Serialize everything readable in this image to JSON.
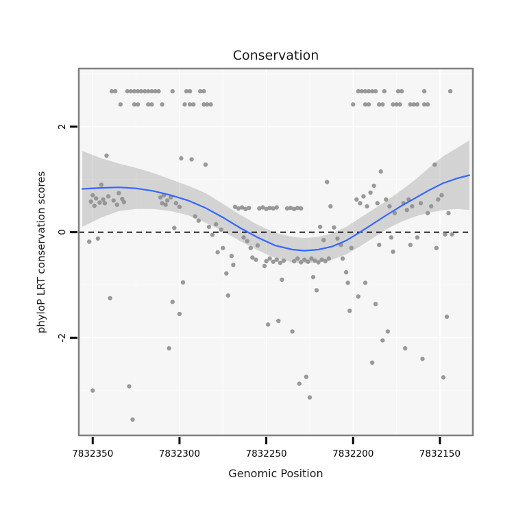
{
  "chart_data": {
    "type": "scatter",
    "title": "Conservation",
    "xlabel": "Genomic Position",
    "ylabel": "phyloP LRT conservation scores",
    "x_reversed": true,
    "x_domain": [
      7832358,
      7832131
    ],
    "y_domain": [
      -3.85,
      3.1
    ],
    "x_ticks": [
      7832350,
      7832300,
      7832250,
      7832200,
      7832150
    ],
    "x_minor_ticks": [
      7832325,
      7832275,
      7832225,
      7832175
    ],
    "y_ticks": [
      -2,
      0,
      2
    ],
    "y_minor_ticks": [
      -3,
      -1,
      1,
      3
    ],
    "reference_line_y": 0,
    "legend": "none",
    "grid": "on",
    "colors": {
      "point": "#8f8f8f",
      "smooth_line": "#3366FF",
      "ribbon": "#9c9c9c",
      "panel": "#f6f6f6",
      "grid_major": "#ffffff",
      "grid_minor": "#fbfbfb",
      "border": "#7f7f7f",
      "ref_line": "#000000",
      "tick": "#000000"
    },
    "points": [
      [
        7832339,
        2.67
      ],
      [
        7832337,
        2.67
      ],
      [
        7832330,
        2.67
      ],
      [
        7832328,
        2.67
      ],
      [
        7832326,
        2.67
      ],
      [
        7832324,
        2.67
      ],
      [
        7832322,
        2.67
      ],
      [
        7832320,
        2.67
      ],
      [
        7832318,
        2.67
      ],
      [
        7832316,
        2.67
      ],
      [
        7832314,
        2.67
      ],
      [
        7832312,
        2.67
      ],
      [
        7832304,
        2.67
      ],
      [
        7832296,
        2.67
      ],
      [
        7832294,
        2.67
      ],
      [
        7832288,
        2.67
      ],
      [
        7832286,
        2.67
      ],
      [
        7832197,
        2.67
      ],
      [
        7832195,
        2.67
      ],
      [
        7832193,
        2.67
      ],
      [
        7832191,
        2.67
      ],
      [
        7832189,
        2.67
      ],
      [
        7832187,
        2.67
      ],
      [
        7832182,
        2.67
      ],
      [
        7832174,
        2.67
      ],
      [
        7832172,
        2.67
      ],
      [
        7832159,
        2.67
      ],
      [
        7832144,
        2.67
      ],
      [
        7832334,
        2.42
      ],
      [
        7832326,
        2.42
      ],
      [
        7832324,
        2.42
      ],
      [
        7832318,
        2.42
      ],
      [
        7832316,
        2.42
      ],
      [
        7832310,
        2.42
      ],
      [
        7832297,
        2.42
      ],
      [
        7832294,
        2.42
      ],
      [
        7832292,
        2.42
      ],
      [
        7832286,
        2.42
      ],
      [
        7832284,
        2.42
      ],
      [
        7832282,
        2.42
      ],
      [
        7832200,
        2.42
      ],
      [
        7832193,
        2.42
      ],
      [
        7832191,
        2.42
      ],
      [
        7832185,
        2.42
      ],
      [
        7832183,
        2.42
      ],
      [
        7832177,
        2.42
      ],
      [
        7832175,
        2.42
      ],
      [
        7832173,
        2.42
      ],
      [
        7832167,
        2.42
      ],
      [
        7832165,
        2.42
      ],
      [
        7832163,
        2.42
      ],
      [
        7832159,
        2.42
      ],
      [
        7832157,
        2.42
      ],
      [
        7832351,
        0.58
      ],
      [
        7832350,
        0.7
      ],
      [
        7832349,
        0.5
      ],
      [
        7832348,
        0.64
      ],
      [
        7832346,
        0.56
      ],
      [
        7832345,
        0.9
      ],
      [
        7832344,
        0.62
      ],
      [
        7832343,
        0.55
      ],
      [
        7832341,
        0.68
      ],
      [
        7832338,
        0.6
      ],
      [
        7832336,
        0.52
      ],
      [
        7832335,
        0.74
      ],
      [
        7832333,
        0.63
      ],
      [
        7832332,
        0.57
      ],
      [
        7832311,
        0.66
      ],
      [
        7832310,
        0.55
      ],
      [
        7832309,
        0.7
      ],
      [
        7832308,
        0.52
      ],
      [
        7832307,
        0.6
      ],
      [
        7832305,
        0.66
      ],
      [
        7832302,
        0.55
      ],
      [
        7832300,
        0.48
      ],
      [
        7832352,
        -0.18
      ],
      [
        7832347,
        -0.12
      ],
      [
        7832342,
        1.45
      ],
      [
        7832340,
        -1.25
      ],
      [
        7832350,
        -3.0
      ],
      [
        7832329,
        -2.92
      ],
      [
        7832327,
        -3.55
      ],
      [
        7832306,
        -2.2
      ],
      [
        7832304,
        -1.32
      ],
      [
        7832300,
        -1.55
      ],
      [
        7832298,
        -0.95
      ],
      [
        7832303,
        0.08
      ],
      [
        7832299,
        1.4
      ],
      [
        7832293,
        1.38
      ],
      [
        7832291,
        0.3
      ],
      [
        7832289,
        0.22
      ],
      [
        7832285,
        1.28
      ],
      [
        7832283,
        0.1
      ],
      [
        7832281,
        -0.05
      ],
      [
        7832279,
        0.15
      ],
      [
        7832278,
        -0.38
      ],
      [
        7832276,
        0.05
      ],
      [
        7832275,
        -0.3
      ],
      [
        7832273,
        -0.78
      ],
      [
        7832272,
        -1.2
      ],
      [
        7832270,
        -0.45
      ],
      [
        7832269,
        -0.62
      ],
      [
        7832268,
        0.48
      ],
      [
        7832266,
        0.45
      ],
      [
        7832264,
        0.47
      ],
      [
        7832262,
        0.44
      ],
      [
        7832260,
        0.46
      ],
      [
        7832254,
        0.45
      ],
      [
        7832252,
        0.47
      ],
      [
        7832250,
        0.44
      ],
      [
        7832248,
        0.46
      ],
      [
        7832246,
        0.45
      ],
      [
        7832244,
        0.47
      ],
      [
        7832238,
        0.45
      ],
      [
        7832236,
        0.46
      ],
      [
        7832234,
        0.44
      ],
      [
        7832232,
        0.46
      ],
      [
        7832230,
        0.45
      ],
      [
        7832258,
        -0.48
      ],
      [
        7832256,
        -0.52
      ],
      [
        7832250,
        -0.55
      ],
      [
        7832248,
        -0.5
      ],
      [
        7832246,
        -0.56
      ],
      [
        7832244,
        -0.52
      ],
      [
        7832242,
        -0.58
      ],
      [
        7832240,
        -0.54
      ],
      [
        7832234,
        -0.55
      ],
      [
        7832232,
        -0.5
      ],
      [
        7832230,
        -0.57
      ],
      [
        7832228,
        -0.52
      ],
      [
        7832226,
        -0.56
      ],
      [
        7832224,
        -0.5
      ],
      [
        7832222,
        -0.54
      ],
      [
        7832220,
        -0.57
      ],
      [
        7832218,
        -0.52
      ],
      [
        7832216,
        -0.55
      ],
      [
        7832214,
        -0.5
      ],
      [
        7832263,
        -0.1
      ],
      [
        7832261,
        -0.17
      ],
      [
        7832259,
        -0.3
      ],
      [
        7832255,
        -0.25
      ],
      [
        7832251,
        -0.64
      ],
      [
        7832249,
        -1.75
      ],
      [
        7832243,
        -1.68
      ],
      [
        7832241,
        -0.9
      ],
      [
        7832235,
        -1.88
      ],
      [
        7832231,
        -2.87
      ],
      [
        7832227,
        -2.74
      ],
      [
        7832225,
        -3.13
      ],
      [
        7832223,
        -0.85
      ],
      [
        7832221,
        -1.1
      ],
      [
        7832219,
        0.1
      ],
      [
        7832217,
        -0.15
      ],
      [
        7832215,
        0.95
      ],
      [
        7832213,
        0.49
      ],
      [
        7832211,
        0.09
      ],
      [
        7832209,
        -0.12
      ],
      [
        7832207,
        -0.24
      ],
      [
        7832206,
        -0.5
      ],
      [
        7832204,
        -0.76
      ],
      [
        7832203,
        -0.96
      ],
      [
        7832202,
        -1.49
      ],
      [
        7832201,
        -0.3
      ],
      [
        7832198,
        0.62
      ],
      [
        7832196,
        0.55
      ],
      [
        7832194,
        0.68
      ],
      [
        7832192,
        0.49
      ],
      [
        7832190,
        0.75
      ],
      [
        7832188,
        0.88
      ],
      [
        7832186,
        0.55
      ],
      [
        7832184,
        1.15
      ],
      [
        7832181,
        0.62
      ],
      [
        7832179,
        0.49
      ],
      [
        7832178,
        -0.1
      ],
      [
        7832176,
        0.36
      ],
      [
        7832171,
        0.55
      ],
      [
        7832169,
        0.42
      ],
      [
        7832168,
        0.62
      ],
      [
        7832166,
        0.49
      ],
      [
        7832161,
        0.55
      ],
      [
        7832157,
        0.36
      ],
      [
        7832155,
        0.49
      ],
      [
        7832153,
        1.28
      ],
      [
        7832151,
        0.62
      ],
      [
        7832149,
        0.7
      ],
      [
        7832147,
        -0.04
      ],
      [
        7832145,
        0.36
      ],
      [
        7832143,
        -0.04
      ],
      [
        7832197,
        -1.22
      ],
      [
        7832193,
        -0.96
      ],
      [
        7832189,
        -2.47
      ],
      [
        7832187,
        -1.36
      ],
      [
        7832185,
        -0.24
      ],
      [
        7832183,
        -2.05
      ],
      [
        7832180,
        -1.88
      ],
      [
        7832177,
        -0.37
      ],
      [
        7832170,
        -2.2
      ],
      [
        7832167,
        -0.24
      ],
      [
        7832163,
        -0.1
      ],
      [
        7832160,
        -2.4
      ],
      [
        7832152,
        -0.3
      ],
      [
        7832148,
        -2.75
      ],
      [
        7832146,
        -1.6
      ]
    ],
    "smooth": {
      "x": [
        7832356,
        7832345,
        7832335,
        7832325,
        7832315,
        7832305,
        7832295,
        7832285,
        7832275,
        7832265,
        7832255,
        7832245,
        7832235,
        7832228,
        7832220,
        7832212,
        7832204,
        7832196,
        7832188,
        7832180,
        7832172,
        7832164,
        7832156,
        7832148,
        7832140,
        7832133
      ],
      "fit": [
        0.82,
        0.84,
        0.85,
        0.83,
        0.78,
        0.7,
        0.6,
        0.46,
        0.28,
        0.08,
        -0.1,
        -0.25,
        -0.33,
        -0.35,
        -0.33,
        -0.27,
        -0.16,
        0.0,
        0.17,
        0.34,
        0.5,
        0.65,
        0.8,
        0.93,
        1.02,
        1.08
      ],
      "lower": [
        0.1,
        0.28,
        0.4,
        0.44,
        0.44,
        0.4,
        0.32,
        0.18,
        0.02,
        -0.17,
        -0.34,
        -0.49,
        -0.57,
        -0.59,
        -0.57,
        -0.52,
        -0.42,
        -0.27,
        -0.1,
        0.07,
        0.2,
        0.3,
        0.37,
        0.42,
        0.44,
        0.42
      ],
      "upper": [
        1.54,
        1.4,
        1.3,
        1.22,
        1.12,
        1.0,
        0.88,
        0.74,
        0.54,
        0.33,
        0.14,
        -0.01,
        -0.09,
        -0.11,
        -0.09,
        -0.02,
        0.1,
        0.27,
        0.44,
        0.61,
        0.8,
        1.0,
        1.23,
        1.44,
        1.6,
        1.74
      ]
    }
  }
}
